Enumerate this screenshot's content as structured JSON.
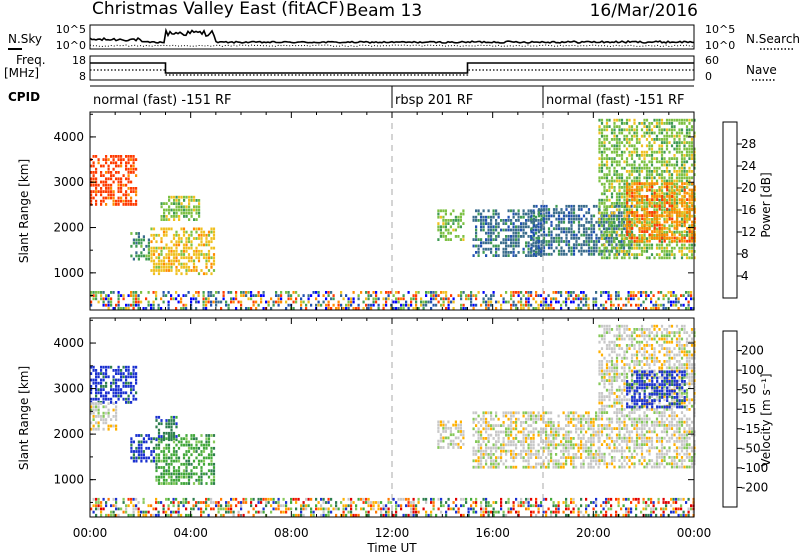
{
  "header": {
    "station": "Christmas Valley East (fitACF)",
    "beam": "Beam 13",
    "date": "16/Mar/2016"
  },
  "noise_panel": {
    "left_label": "N.Sky",
    "right_label": "N.Search",
    "left_ticks": [
      "10^5",
      "10^0"
    ],
    "right_ticks": [
      "10^5",
      "10^0"
    ]
  },
  "freq_panel": {
    "left_label_line1": "Freq.",
    "left_label_line2": "[MHz]",
    "right_label": "Nave",
    "left_ticks": [
      "18",
      "8"
    ],
    "right_ticks": [
      "60",
      "0"
    ]
  },
  "cpid": {
    "label": "CPID",
    "modes": [
      {
        "name": "normal (fast) -151 RF",
        "start_hour": 0
      },
      {
        "name": "rbsp 201 RF",
        "start_hour": 12
      },
      {
        "name": "normal (fast) -151 RF",
        "start_hour": 18
      }
    ]
  },
  "x_axis": {
    "label": "Time UT",
    "tick_labels": [
      "00:00",
      "04:00",
      "08:00",
      "12:00",
      "16:00",
      "20:00",
      "00:00"
    ]
  },
  "power_panel": {
    "ylabel": "Slant Range [km]",
    "y_ticks": [
      "4000",
      "3000",
      "2000",
      "1000"
    ],
    "colorbar_label": "Power [dB]",
    "colorbar_ticks": [
      "28",
      "24",
      "20",
      "16",
      "12",
      "8",
      "4"
    ],
    "colors": [
      "#0000ff",
      "#2050b0",
      "#3a6c8c",
      "#3f9a52",
      "#7cc043",
      "#f0c020",
      "#ff8a00",
      "#ff3a00"
    ]
  },
  "velocity_panel": {
    "ylabel": "Slant Range [km]",
    "y_ticks": [
      "4000",
      "3000",
      "2000",
      "1000"
    ],
    "colorbar_label": "Velocity [m s⁻¹]",
    "colorbar_ticks": [
      "200",
      "100",
      "50",
      "15",
      "-15",
      "-50",
      "-100",
      "-200"
    ],
    "colors": [
      "#1a30d0",
      "#2e7e4e",
      "#42a83a",
      "#86c85a",
      "#c8c8c8",
      "#ffb000",
      "#ff7a00",
      "#ff3000",
      "#e00000"
    ]
  },
  "chart_data": {
    "type": "heatmap",
    "x_range_hours": [
      0,
      24
    ],
    "y_range_km": [
      180,
      4550
    ],
    "power_regions": [
      {
        "t0": 0.0,
        "t1": 1.8,
        "r0": 2500,
        "r1": 3600,
        "level": 7
      },
      {
        "t0": 1.6,
        "t1": 2.3,
        "r0": 1300,
        "r1": 1900,
        "level": 3
      },
      {
        "t0": 2.4,
        "t1": 4.9,
        "r0": 1000,
        "r1": 2000,
        "level": 5
      },
      {
        "t0": 2.8,
        "t1": 4.3,
        "r0": 2200,
        "r1": 2700,
        "level": 4
      },
      {
        "t0": 13.8,
        "t1": 14.8,
        "r0": 1700,
        "r1": 2400,
        "level": 4
      },
      {
        "t0": 15.2,
        "t1": 18.0,
        "r0": 1400,
        "r1": 2400,
        "level": 2
      },
      {
        "t0": 17.5,
        "t1": 21.5,
        "r0": 1400,
        "r1": 2500,
        "level": 2
      },
      {
        "t0": 20.2,
        "t1": 24.0,
        "r0": 1300,
        "r1": 4400,
        "level": 4
      },
      {
        "t0": 21.3,
        "t1": 24.0,
        "r0": 1700,
        "r1": 3000,
        "level": 6
      },
      {
        "t0": 0.0,
        "t1": 24.0,
        "r0": 200,
        "r1": 600,
        "level": 3
      }
    ],
    "velocity_regions": [
      {
        "t0": 0.0,
        "t1": 1.8,
        "r0": 2700,
        "r1": 3500,
        "level": 0
      },
      {
        "t0": 0.0,
        "t1": 1.0,
        "r0": 2100,
        "r1": 2700,
        "level": 4
      },
      {
        "t0": 1.6,
        "t1": 2.5,
        "r0": 1400,
        "r1": 2000,
        "level": 0
      },
      {
        "t0": 2.6,
        "t1": 4.9,
        "r0": 900,
        "r1": 2000,
        "level": 2
      },
      {
        "t0": 2.6,
        "t1": 3.4,
        "r0": 1900,
        "r1": 2400,
        "level": 1
      },
      {
        "t0": 13.8,
        "t1": 14.8,
        "r0": 1700,
        "r1": 2300,
        "level": 4
      },
      {
        "t0": 15.2,
        "t1": 20.2,
        "r0": 1300,
        "r1": 2500,
        "level": 4
      },
      {
        "t0": 20.2,
        "t1": 24.0,
        "r0": 1300,
        "r1": 4400,
        "level": 4
      },
      {
        "t0": 21.3,
        "t1": 23.6,
        "r0": 2600,
        "r1": 3400,
        "level": 0
      },
      {
        "t0": 0.0,
        "t1": 24.0,
        "r0": 200,
        "r1": 600,
        "level": 2
      }
    ]
  }
}
